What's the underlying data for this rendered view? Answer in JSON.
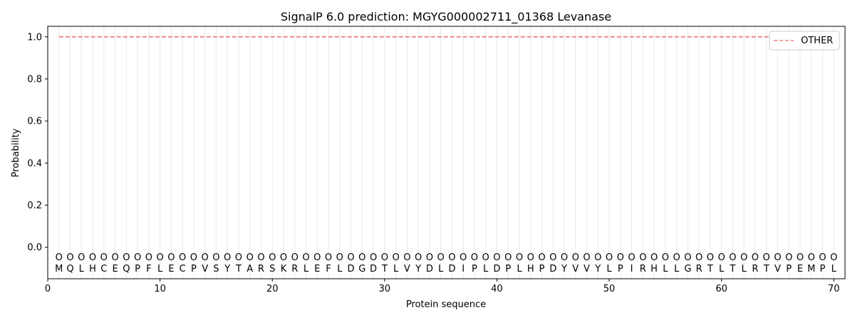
{
  "chart_data": {
    "type": "line",
    "title": "SignalP 6.0 prediction: MGYG000002711_01368 Levanase",
    "xlabel": "Protein sequence",
    "ylabel": "Probability",
    "xlim": [
      0,
      71
    ],
    "ylim": [
      -0.15,
      1.05
    ],
    "x_ticks": [
      "0",
      "10",
      "20",
      "30",
      "40",
      "50",
      "60",
      "70"
    ],
    "y_ticks": [
      "0.0",
      "0.2",
      "0.4",
      "0.6",
      "0.8",
      "1.0"
    ],
    "sequence": [
      "M",
      "Q",
      "L",
      "H",
      "C",
      "E",
      "Q",
      "P",
      "F",
      "L",
      "E",
      "C",
      "P",
      "V",
      "S",
      "Y",
      "T",
      "A",
      "R",
      "S",
      "K",
      "R",
      "L",
      "E",
      "F",
      "L",
      "D",
      "G",
      "D",
      "T",
      "L",
      "V",
      "Y",
      "D",
      "L",
      "D",
      "I",
      "P",
      "L",
      "D",
      "P",
      "L",
      "H",
      "P",
      "D",
      "Y",
      "V",
      "V",
      "Y",
      "L",
      "P",
      "I",
      "R",
      "H",
      "L",
      "L",
      "G",
      "R",
      "T",
      "L",
      "T",
      "L",
      "R",
      "T",
      "V",
      "P",
      "E",
      "M",
      "P",
      "L"
    ],
    "region_marker": "O",
    "marker_y": -0.045,
    "series": [
      {
        "name": "OTHER",
        "color": "#f08080",
        "style": "dashed",
        "x_start": 1,
        "x_end": 70,
        "value": 1.0
      }
    ],
    "legend": {
      "position": "top-right",
      "entries": [
        "OTHER"
      ]
    },
    "grid": "vertical lines at each residue"
  }
}
